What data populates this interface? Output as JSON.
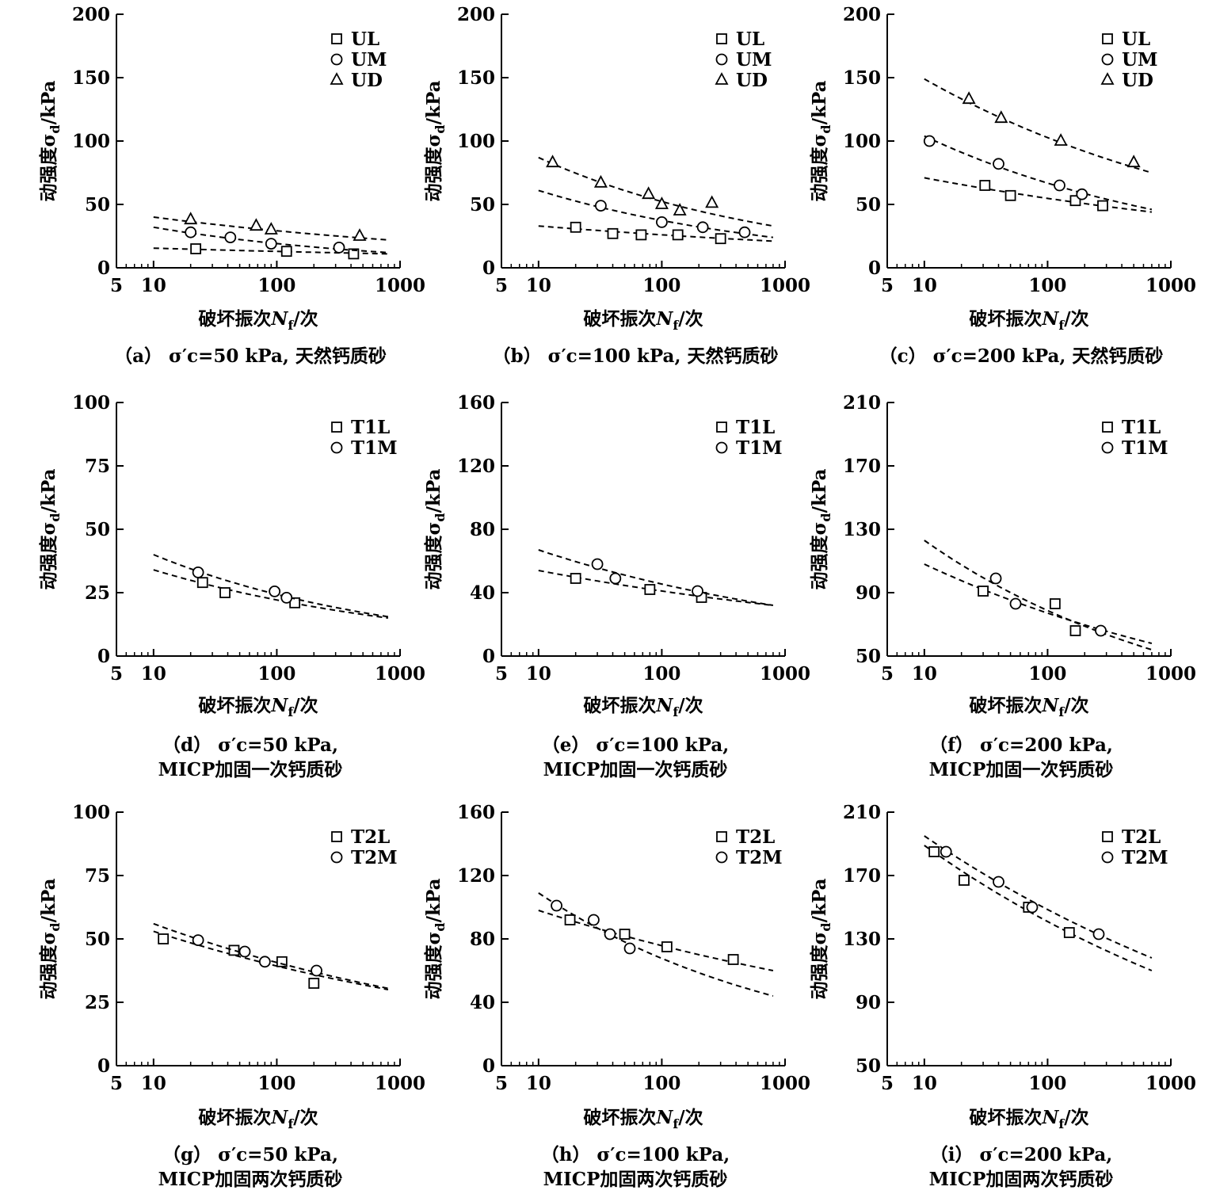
{
  "axis_text": {
    "xlabel_prefix": "破坏振次",
    "xlabel_var": "N",
    "xlabel_sub": "f",
    "xlabel_suffix": "/次",
    "ylabel_prefix": "动强度σ",
    "ylabel_sub": "d",
    "ylabel_suffix": "/kPa"
  },
  "chart_data": [
    {
      "type": "scatter",
      "panel": "a",
      "caption": {
        "lines": [
          "（a） σ′c=50 kPa, 天然钙质砂"
        ]
      },
      "x_scale": "log",
      "xlim": [
        5,
        1000
      ],
      "x_ticks": [
        5,
        10,
        100,
        1000
      ],
      "x_tick_labels": [
        "5",
        "10",
        "100",
        "1000"
      ],
      "ylim": [
        0,
        200
      ],
      "y_ticks": [
        0,
        50,
        100,
        150,
        200
      ],
      "y_tick_labels": [
        "0",
        "50",
        "100",
        "150",
        "200"
      ],
      "legend": "top-right",
      "grid": false,
      "series": [
        {
          "name": "UL",
          "marker": "square",
          "points": [
            [
              22,
              15
            ],
            [
              120,
              13
            ],
            [
              420,
              11
            ]
          ],
          "fit": [
            [
              10,
              15.5
            ],
            [
              800,
              11
            ]
          ]
        },
        {
          "name": "UM",
          "marker": "circle",
          "points": [
            [
              20,
              28
            ],
            [
              42,
              24
            ],
            [
              90,
              19
            ],
            [
              320,
              16
            ]
          ],
          "fit": [
            [
              10,
              32
            ],
            [
              800,
              12
            ]
          ]
        },
        {
          "name": "UD",
          "marker": "triangle",
          "points": [
            [
              20,
              38
            ],
            [
              68,
              33
            ],
            [
              90,
              30
            ],
            [
              470,
              25
            ]
          ],
          "fit": [
            [
              10,
              40
            ],
            [
              800,
              22
            ]
          ]
        }
      ]
    },
    {
      "type": "scatter",
      "panel": "b",
      "caption": {
        "lines": [
          "（b） σ′c=100 kPa, 天然钙质砂"
        ]
      },
      "x_scale": "log",
      "xlim": [
        5,
        1000
      ],
      "x_ticks": [
        5,
        10,
        100,
        1000
      ],
      "x_tick_labels": [
        "5",
        "10",
        "100",
        "1000"
      ],
      "ylim": [
        0,
        200
      ],
      "y_ticks": [
        0,
        50,
        100,
        150,
        200
      ],
      "y_tick_labels": [
        "0",
        "50",
        "100",
        "150",
        "200"
      ],
      "legend": "top-right",
      "grid": false,
      "series": [
        {
          "name": "UL",
          "marker": "square",
          "points": [
            [
              20,
              32
            ],
            [
              40,
              27
            ],
            [
              68,
              26
            ],
            [
              135,
              26
            ],
            [
              300,
              23
            ]
          ],
          "fit": [
            [
              10,
              33
            ],
            [
              800,
              21
            ]
          ]
        },
        {
          "name": "UM",
          "marker": "circle",
          "points": [
            [
              32,
              49
            ],
            [
              100,
              36
            ],
            [
              215,
              32
            ],
            [
              470,
              28
            ]
          ],
          "fit": [
            [
              10,
              61
            ],
            [
              800,
              24
            ]
          ]
        },
        {
          "name": "UD",
          "marker": "triangle",
          "points": [
            [
              13,
              83
            ],
            [
              32,
              67
            ],
            [
              78,
              58
            ],
            [
              100,
              50
            ],
            [
              140,
              45
            ],
            [
              255,
              51
            ]
          ],
          "fit": [
            [
              10,
              87
            ],
            [
              800,
              33
            ]
          ]
        }
      ]
    },
    {
      "type": "scatter",
      "panel": "c",
      "caption": {
        "lines": [
          "（c） σ′c=200 kPa, 天然钙质砂"
        ]
      },
      "x_scale": "log",
      "xlim": [
        5,
        1000
      ],
      "x_ticks": [
        5,
        10,
        100,
        1000
      ],
      "x_tick_labels": [
        "5",
        "10",
        "100",
        "1000"
      ],
      "ylim": [
        0,
        200
      ],
      "y_ticks": [
        0,
        50,
        100,
        150,
        200
      ],
      "y_tick_labels": [
        "0",
        "50",
        "100",
        "150",
        "200"
      ],
      "legend": "top-right",
      "grid": false,
      "series": [
        {
          "name": "UL",
          "marker": "square",
          "points": [
            [
              31,
              65
            ],
            [
              50,
              57
            ],
            [
              168,
              53
            ],
            [
              280,
              49
            ]
          ],
          "fit": [
            [
              10,
              71
            ],
            [
              700,
              44
            ]
          ]
        },
        {
          "name": "UM",
          "marker": "circle",
          "points": [
            [
              11,
              100
            ],
            [
              40,
              82
            ],
            [
              125,
              65
            ],
            [
              190,
              58
            ]
          ],
          "fit": [
            [
              10,
              104
            ],
            [
              700,
              46
            ]
          ]
        },
        {
          "name": "UD",
          "marker": "triangle",
          "points": [
            [
              23,
              133
            ],
            [
              42,
              118
            ],
            [
              128,
              100
            ],
            [
              500,
              83
            ]
          ],
          "fit": [
            [
              10,
              149
            ],
            [
              700,
              75
            ]
          ]
        }
      ]
    },
    {
      "type": "scatter",
      "panel": "d",
      "caption": {
        "lines": [
          "（d） σ′c=50 kPa,",
          "MICP加固一次钙质砂"
        ]
      },
      "x_scale": "log",
      "xlim": [
        5,
        1000
      ],
      "x_ticks": [
        5,
        10,
        100,
        1000
      ],
      "x_tick_labels": [
        "5",
        "10",
        "100",
        "1000"
      ],
      "ylim": [
        0,
        100
      ],
      "y_ticks": [
        0,
        25,
        50,
        75,
        100
      ],
      "y_tick_labels": [
        "0",
        "25",
        "50",
        "75",
        "100"
      ],
      "legend": "top-right",
      "grid": false,
      "series": [
        {
          "name": "T1L",
          "marker": "square",
          "points": [
            [
              25,
              29
            ],
            [
              38,
              25
            ],
            [
              140,
              21
            ]
          ],
          "fit": [
            [
              10,
              34
            ],
            [
              800,
              15
            ]
          ]
        },
        {
          "name": "T1M",
          "marker": "circle",
          "points": [
            [
              23,
              33
            ],
            [
              96,
              25.5
            ],
            [
              120,
              23
            ]
          ],
          "fit": [
            [
              10,
              40
            ],
            [
              800,
              15.5
            ]
          ]
        }
      ]
    },
    {
      "type": "scatter",
      "panel": "e",
      "caption": {
        "lines": [
          "（e） σ′c=100 kPa,",
          "MICP加固一次钙质砂"
        ]
      },
      "x_scale": "log",
      "xlim": [
        5,
        1000
      ],
      "x_ticks": [
        5,
        10,
        100,
        1000
      ],
      "x_tick_labels": [
        "5",
        "10",
        "100",
        "1000"
      ],
      "ylim": [
        0,
        160
      ],
      "y_ticks": [
        0,
        40,
        80,
        120,
        160
      ],
      "y_tick_labels": [
        "0",
        "40",
        "80",
        "120",
        "160"
      ],
      "legend": "top-right",
      "grid": false,
      "series": [
        {
          "name": "T1L",
          "marker": "square",
          "points": [
            [
              20,
              49
            ],
            [
              80,
              42
            ],
            [
              210,
              37
            ]
          ],
          "fit": [
            [
              10,
              54
            ],
            [
              800,
              32
            ]
          ]
        },
        {
          "name": "T1M",
          "marker": "circle",
          "points": [
            [
              30,
              58
            ],
            [
              42,
              49
            ],
            [
              195,
              41
            ]
          ],
          "fit": [
            [
              10,
              67
            ],
            [
              800,
              32
            ]
          ]
        }
      ]
    },
    {
      "type": "scatter",
      "panel": "f",
      "caption": {
        "lines": [
          "（f） σ′c=200 kPa,",
          "MICP加固一次钙质砂"
        ]
      },
      "x_scale": "log",
      "xlim": [
        5,
        1000
      ],
      "x_ticks": [
        5,
        10,
        100,
        1000
      ],
      "x_tick_labels": [
        "5",
        "10",
        "100",
        "1000"
      ],
      "ylim": [
        50,
        210
      ],
      "y_ticks": [
        50,
        90,
        130,
        170,
        210
      ],
      "y_tick_labels": [
        "50",
        "90",
        "130",
        "170",
        "210"
      ],
      "legend": "top-right",
      "grid": false,
      "series": [
        {
          "name": "T1L",
          "marker": "square",
          "points": [
            [
              30,
              91
            ],
            [
              115,
              83
            ],
            [
              168,
              66
            ]
          ],
          "fit": [
            [
              10,
              108
            ],
            [
              700,
              58
            ]
          ]
        },
        {
          "name": "T1M",
          "marker": "circle",
          "points": [
            [
              38,
              99
            ],
            [
              55,
              83
            ],
            [
              270,
              66
            ]
          ],
          "fit": [
            [
              10,
              123
            ],
            [
              700,
              54
            ]
          ]
        }
      ]
    },
    {
      "type": "scatter",
      "panel": "g",
      "caption": {
        "lines": [
          "（g） σ′c=50 kPa,",
          "MICP加固两次钙质砂"
        ]
      },
      "x_scale": "log",
      "xlim": [
        5,
        1000
      ],
      "x_ticks": [
        5,
        10,
        100,
        1000
      ],
      "x_tick_labels": [
        "5",
        "10",
        "100",
        "1000"
      ],
      "ylim": [
        0,
        100
      ],
      "y_ticks": [
        0,
        25,
        50,
        75,
        100
      ],
      "y_tick_labels": [
        "0",
        "25",
        "50",
        "75",
        "100"
      ],
      "legend": "top-right",
      "grid": false,
      "series": [
        {
          "name": "T2L",
          "marker": "square",
          "points": [
            [
              12,
              50
            ],
            [
              45,
              45.5
            ],
            [
              110,
              41
            ],
            [
              200,
              32.5
            ]
          ],
          "fit": [
            [
              10,
              53
            ],
            [
              800,
              30
            ]
          ]
        },
        {
          "name": "T2M",
          "marker": "circle",
          "points": [
            [
              23,
              49.5
            ],
            [
              55,
              45
            ],
            [
              80,
              41
            ],
            [
              210,
              37.5
            ]
          ],
          "fit": [
            [
              10,
              56
            ],
            [
              800,
              30.5
            ]
          ]
        }
      ]
    },
    {
      "type": "scatter",
      "panel": "h",
      "caption": {
        "lines": [
          "（h） σ′c=100 kPa,",
          "MICP加固两次钙质砂"
        ]
      },
      "x_scale": "log",
      "xlim": [
        5,
        1000
      ],
      "x_ticks": [
        5,
        10,
        100,
        1000
      ],
      "x_tick_labels": [
        "5",
        "10",
        "100",
        "1000"
      ],
      "ylim": [
        0,
        160
      ],
      "y_ticks": [
        0,
        40,
        80,
        120,
        160
      ],
      "y_tick_labels": [
        "0",
        "40",
        "80",
        "120",
        "160"
      ],
      "legend": "top-right",
      "grid": false,
      "series": [
        {
          "name": "T2L",
          "marker": "square",
          "points": [
            [
              18,
              92
            ],
            [
              50,
              83
            ],
            [
              110,
              75
            ],
            [
              380,
              67
            ]
          ],
          "fit": [
            [
              10,
              98
            ],
            [
              800,
              60
            ]
          ]
        },
        {
          "name": "T2M",
          "marker": "circle",
          "points": [
            [
              14,
              101
            ],
            [
              28,
              92
            ],
            [
              38,
              83
            ],
            [
              55,
              74
            ]
          ],
          "fit": [
            [
              10,
              109
            ],
            [
              800,
              44
            ]
          ]
        }
      ]
    },
    {
      "type": "scatter",
      "panel": "i",
      "caption": {
        "lines": [
          "（i） σ′c=200 kPa,",
          "MICP加固两次钙质砂"
        ]
      },
      "x_scale": "log",
      "xlim": [
        5,
        1000
      ],
      "x_ticks": [
        5,
        10,
        100,
        1000
      ],
      "x_tick_labels": [
        "5",
        "10",
        "100",
        "1000"
      ],
      "ylim": [
        50,
        210
      ],
      "y_ticks": [
        50,
        90,
        130,
        170,
        210
      ],
      "y_tick_labels": [
        "50",
        "90",
        "130",
        "170",
        "210"
      ],
      "legend": "top-right",
      "grid": false,
      "series": [
        {
          "name": "T2L",
          "marker": "square",
          "points": [
            [
              12,
              185
            ],
            [
              21,
              167
            ],
            [
              70,
              150
            ],
            [
              150,
              134
            ]
          ],
          "fit": [
            [
              10,
              189
            ],
            [
              700,
              110
            ]
          ]
        },
        {
          "name": "T2M",
          "marker": "circle",
          "points": [
            [
              15,
              185
            ],
            [
              40,
              166
            ],
            [
              75,
              150
            ],
            [
              260,
              133
            ]
          ],
          "fit": [
            [
              10,
              195
            ],
            [
              700,
              118
            ]
          ]
        }
      ]
    }
  ]
}
